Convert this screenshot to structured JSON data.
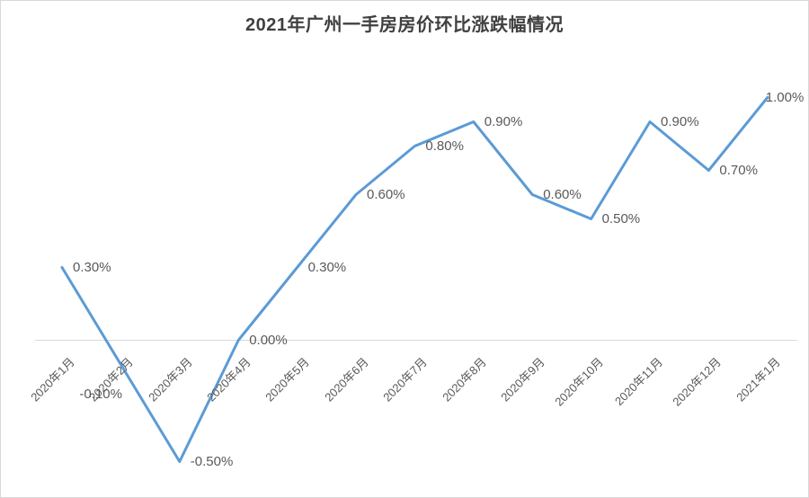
{
  "page": {
    "background": "#ffffff",
    "border_color": "#d9d9d9"
  },
  "chart_data": {
    "type": "line",
    "title": "2021年广州一手房房价环比涨跌幅情况",
    "categories": [
      "2020年1月",
      "2020年2月",
      "2020年3月",
      "2020年4月",
      "2020年5月",
      "2020年6月",
      "2020年7月",
      "2020年8月",
      "2020年9月",
      "2020年10月",
      "2020年11月",
      "2020年12月",
      "2021年1月"
    ],
    "values": [
      0.3,
      -0.1,
      -0.5,
      0.0,
      0.3,
      0.6,
      0.8,
      0.9,
      0.6,
      0.5,
      0.9,
      0.7,
      1.0
    ],
    "data_labels": [
      "0.30%",
      "-0.10%",
      "-0.50%",
      "0.00%",
      "0.30%",
      "0.60%",
      "0.80%",
      "0.90%",
      "0.60%",
      "0.50%",
      "0.90%",
      "0.70%",
      "1.00%"
    ],
    "label_positions": [
      "right",
      "below",
      "right",
      "right",
      "right",
      "right",
      "right",
      "right",
      "right",
      "right",
      "right",
      "right",
      "end"
    ],
    "xlabel": "",
    "ylabel": "",
    "ylim": [
      -0.6,
      1.1
    ],
    "grid": "zero-line-only",
    "legend": "none",
    "x_axis_rotation": -45,
    "line_color": "#5b9bd5",
    "label_color": "#595959",
    "axis_label_color": "#595959",
    "title_color": "#404040",
    "gridline_color": "#d9d9d9"
  }
}
